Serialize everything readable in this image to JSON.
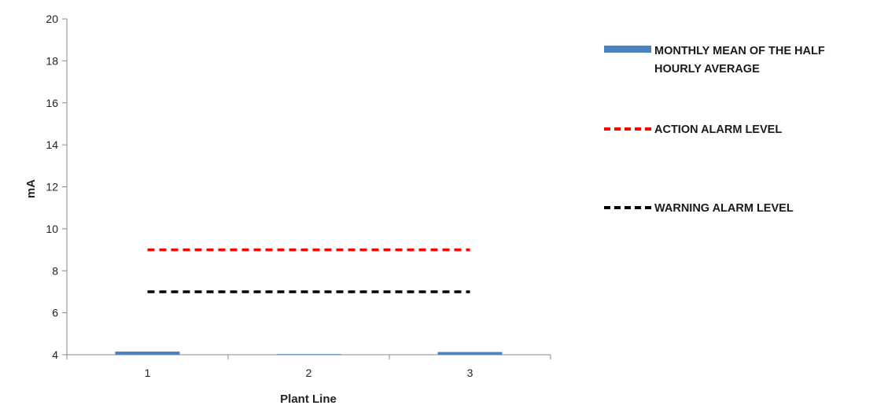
{
  "chart_data": {
    "type": "bar",
    "categories": [
      "1",
      "2",
      "3"
    ],
    "xlabel": "Plant Line",
    "ylabel": "mA",
    "ylim": [
      4,
      20
    ],
    "yticks": [
      4,
      6,
      8,
      10,
      12,
      14,
      16,
      18,
      20
    ],
    "grid": false,
    "legend_position": "right",
    "series": [
      {
        "name": "MONTHLY MEAN OF THE HALF HOURLY AVERAGE",
        "kind": "bar",
        "color": "#4f81bd",
        "values": [
          4.15,
          4.03,
          4.13
        ]
      },
      {
        "name": "ACTION ALARM LEVEL",
        "kind": "line",
        "style": "dashed",
        "color": "#ff0000",
        "values": [
          9,
          9,
          9
        ]
      },
      {
        "name": "WARNING ALARM LEVEL",
        "kind": "line",
        "style": "dashed",
        "color": "#000000",
        "values": [
          7,
          7,
          7
        ]
      }
    ]
  }
}
